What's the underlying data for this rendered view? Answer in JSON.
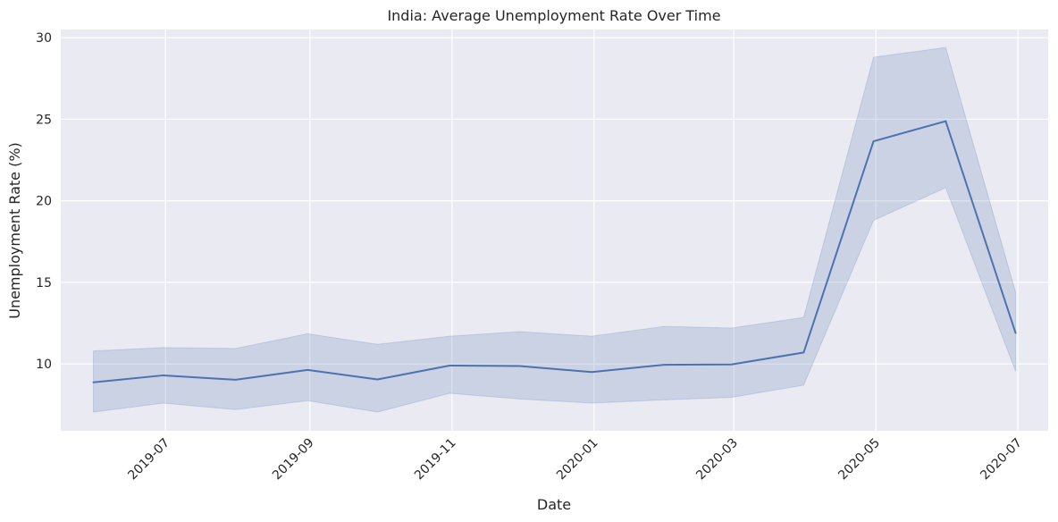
{
  "chart_data": {
    "type": "line",
    "title": "India: Average Unemployment Rate Over Time",
    "xlabel": "Date",
    "ylabel": "Unemployment Rate (%)",
    "x": [
      "2019-05-31",
      "2019-06-30",
      "2019-07-31",
      "2019-08-31",
      "2019-09-30",
      "2019-10-31",
      "2019-11-30",
      "2019-12-31",
      "2020-01-31",
      "2020-02-29",
      "2020-03-31",
      "2020-04-30",
      "2020-05-31",
      "2020-06-30"
    ],
    "series": [
      {
        "values": [
          8.87,
          9.3,
          9.03,
          9.63,
          9.05,
          9.9,
          9.87,
          9.5,
          9.95,
          9.97,
          10.7,
          23.65,
          24.88,
          11.9
        ],
        "ci_lower": [
          7.05,
          7.6,
          7.2,
          7.75,
          7.05,
          8.2,
          7.85,
          7.6,
          7.8,
          7.95,
          8.7,
          18.8,
          20.8,
          9.55
        ],
        "ci_upper": [
          10.8,
          11.0,
          10.95,
          11.85,
          11.2,
          11.7,
          11.98,
          11.7,
          12.3,
          12.2,
          12.85,
          28.8,
          29.4,
          14.4
        ],
        "color": "#4c72b0"
      }
    ],
    "xticks": [
      "2019-07",
      "2019-09",
      "2019-11",
      "2020-01",
      "2020-03",
      "2020-05",
      "2020-07"
    ],
    "yticks": [
      10,
      15,
      20,
      25,
      30
    ],
    "xlim": [
      "2019-05-17",
      "2020-07-14"
    ],
    "ylim": [
      5.9,
      30.5
    ],
    "grid": true,
    "style": {
      "plot_background": "#eaeaf2",
      "grid_color": "#ffffff",
      "line_color": "#4c72b0",
      "band_color": "#4c72b0"
    }
  }
}
